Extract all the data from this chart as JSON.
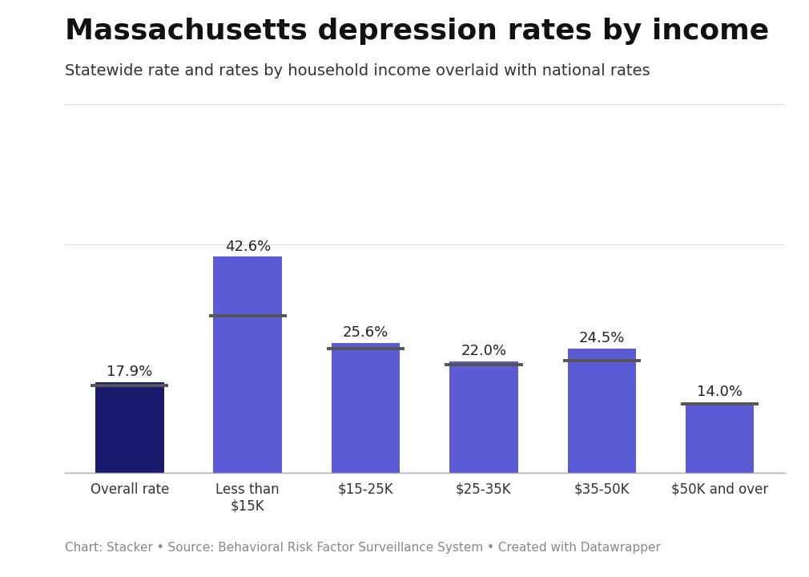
{
  "title": "Massachusetts depression rates by income",
  "subtitle": "Statewide rate and rates by household income overlaid with national rates",
  "footer": "Chart: Stacker • Source: Behavioral Risk Factor Surveillance System • Created with Datawrapper",
  "categories": [
    "Overall rate",
    "Less than\n$15K",
    "$15-25K",
    "$25-35K",
    "$35-50K",
    "$50K and over"
  ],
  "values": [
    17.9,
    42.6,
    25.6,
    22.0,
    24.5,
    14.0
  ],
  "national_lines": [
    17.2,
    31.0,
    24.5,
    21.3,
    22.2,
    13.6
  ],
  "bar_colors": [
    "#1a1a6e",
    "#5b5bd6",
    "#5b5bd6",
    "#5b5bd6",
    "#5b5bd6",
    "#5b5bd6"
  ],
  "line_color": "#555555",
  "background_color": "#ffffff",
  "title_fontsize": 26,
  "subtitle_fontsize": 14,
  "label_fontsize": 13,
  "tick_fontsize": 12,
  "footer_fontsize": 11,
  "ylim": [
    0,
    50
  ],
  "bar_width": 0.58
}
